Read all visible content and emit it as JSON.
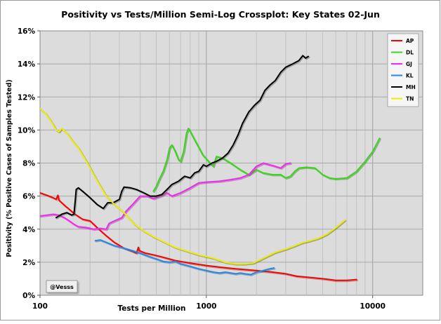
{
  "chart_data": {
    "type": "line",
    "title": "Positivity vs Tests/Million Semi-Log Crossplot: Key States  02-Jun",
    "xlabel": "Tests per Million",
    "ylabel": "Positivity (% Positive Cases of Samples Tested)",
    "x_scale": "log",
    "xlim": [
      100,
      20000
    ],
    "ylim": [
      0,
      16
    ],
    "x_tick_labels": [
      "100",
      "1000",
      "10000"
    ],
    "x_tick_values": [
      100,
      1000,
      10000
    ],
    "y_tick_labels": [
      "0%",
      "2%",
      "4%",
      "6%",
      "8%",
      "10%",
      "12%",
      "14%",
      "16%"
    ],
    "y_tick_values": [
      0,
      2,
      4,
      6,
      8,
      10,
      12,
      14,
      16
    ],
    "grid": true,
    "legend_position": "top-right",
    "watermark": "@Vesss",
    "colors": {
      "background": "#dcdcdc",
      "AP": "#ff0000",
      "DL": "#33dd11",
      "GJ": "#ff22ff",
      "KL": "#2288ee",
      "MH": "#000000",
      "TN": "#eeee00"
    },
    "series": [
      {
        "name": "AP",
        "color": "#ff0000",
        "points": [
          [
            100,
            6.2
          ],
          [
            110,
            6.05
          ],
          [
            120,
            5.9
          ],
          [
            125,
            5.8
          ],
          [
            128,
            6.05
          ],
          [
            130,
            5.75
          ],
          [
            140,
            5.45
          ],
          [
            150,
            5.2
          ],
          [
            160,
            4.95
          ],
          [
            180,
            4.6
          ],
          [
            200,
            4.5
          ],
          [
            220,
            4.1
          ],
          [
            250,
            3.6
          ],
          [
            280,
            3.2
          ],
          [
            320,
            2.85
          ],
          [
            360,
            2.65
          ],
          [
            380,
            2.55
          ],
          [
            390,
            2.9
          ],
          [
            395,
            2.7
          ],
          [
            430,
            2.55
          ],
          [
            480,
            2.45
          ],
          [
            550,
            2.3
          ],
          [
            650,
            2.1
          ],
          [
            800,
            1.95
          ],
          [
            1000,
            1.8
          ],
          [
            1200,
            1.7
          ],
          [
            1500,
            1.6
          ],
          [
            2000,
            1.5
          ],
          [
            2500,
            1.4
          ],
          [
            3000,
            1.3
          ],
          [
            3500,
            1.15
          ],
          [
            4000,
            1.1
          ],
          [
            5000,
            1.0
          ],
          [
            6000,
            0.9
          ],
          [
            7000,
            0.9
          ],
          [
            8000,
            0.95
          ]
        ]
      },
      {
        "name": "DL",
        "color": "#33dd11",
        "points": [
          [
            480,
            6.3
          ],
          [
            500,
            6.6
          ],
          [
            520,
            7.0
          ],
          [
            550,
            7.5
          ],
          [
            580,
            8.2
          ],
          [
            600,
            8.9
          ],
          [
            620,
            9.1
          ],
          [
            650,
            8.7
          ],
          [
            680,
            8.2
          ],
          [
            700,
            8.1
          ],
          [
            730,
            8.7
          ],
          [
            760,
            9.8
          ],
          [
            780,
            10.1
          ],
          [
            800,
            9.9
          ],
          [
            850,
            9.4
          ],
          [
            950,
            8.5
          ],
          [
            1050,
            8.0
          ],
          [
            1100,
            7.8
          ],
          [
            1150,
            8.4
          ],
          [
            1250,
            8.3
          ],
          [
            1400,
            8.0
          ],
          [
            1600,
            7.6
          ],
          [
            1800,
            7.3
          ],
          [
            2000,
            7.6
          ],
          [
            2200,
            7.4
          ],
          [
            2500,
            7.3
          ],
          [
            2800,
            7.3
          ],
          [
            3000,
            7.1
          ],
          [
            3200,
            7.2
          ],
          [
            3400,
            7.5
          ],
          [
            3600,
            7.7
          ],
          [
            4000,
            7.75
          ],
          [
            4500,
            7.7
          ],
          [
            5000,
            7.3
          ],
          [
            5500,
            7.1
          ],
          [
            6000,
            7.05
          ],
          [
            7000,
            7.1
          ],
          [
            8000,
            7.5
          ],
          [
            9000,
            8.1
          ],
          [
            10000,
            8.7
          ],
          [
            11000,
            9.5
          ]
        ]
      },
      {
        "name": "GJ",
        "color": "#ff22ff",
        "points": [
          [
            100,
            4.8
          ],
          [
            110,
            4.85
          ],
          [
            120,
            4.9
          ],
          [
            130,
            4.85
          ],
          [
            140,
            4.7
          ],
          [
            150,
            4.5
          ],
          [
            160,
            4.3
          ],
          [
            170,
            4.15
          ],
          [
            190,
            4.1
          ],
          [
            210,
            4.0
          ],
          [
            230,
            4.05
          ],
          [
            250,
            4.0
          ],
          [
            260,
            4.35
          ],
          [
            280,
            4.5
          ],
          [
            310,
            4.7
          ],
          [
            330,
            5.1
          ],
          [
            360,
            5.5
          ],
          [
            400,
            6.0
          ],
          [
            440,
            6.0
          ],
          [
            480,
            5.85
          ],
          [
            530,
            6.0
          ],
          [
            580,
            6.2
          ],
          [
            620,
            6.0
          ],
          [
            700,
            6.2
          ],
          [
            800,
            6.5
          ],
          [
            900,
            6.8
          ],
          [
            1000,
            6.85
          ],
          [
            1200,
            6.9
          ],
          [
            1400,
            7.0
          ],
          [
            1600,
            7.1
          ],
          [
            1800,
            7.3
          ],
          [
            2000,
            7.8
          ],
          [
            2200,
            8.0
          ],
          [
            2500,
            7.85
          ],
          [
            2800,
            7.7
          ],
          [
            3000,
            7.95
          ],
          [
            3200,
            8.0
          ]
        ]
      },
      {
        "name": "KL",
        "color": "#2288ee",
        "points": [
          [
            215,
            3.3
          ],
          [
            230,
            3.35
          ],
          [
            250,
            3.2
          ],
          [
            280,
            3.0
          ],
          [
            320,
            2.85
          ],
          [
            360,
            2.7
          ],
          [
            400,
            2.55
          ],
          [
            450,
            2.35
          ],
          [
            500,
            2.2
          ],
          [
            550,
            2.05
          ],
          [
            600,
            2.0
          ],
          [
            650,
            2.05
          ],
          [
            700,
            1.9
          ],
          [
            800,
            1.75
          ],
          [
            900,
            1.6
          ],
          [
            1000,
            1.5
          ],
          [
            1100,
            1.4
          ],
          [
            1200,
            1.35
          ],
          [
            1300,
            1.4
          ],
          [
            1400,
            1.35
          ],
          [
            1500,
            1.3
          ],
          [
            1600,
            1.35
          ],
          [
            1700,
            1.3
          ],
          [
            1850,
            1.25
          ],
          [
            2000,
            1.4
          ],
          [
            2200,
            1.5
          ],
          [
            2400,
            1.6
          ],
          [
            2550,
            1.65
          ]
        ]
      },
      {
        "name": "MH",
        "color": "#000000",
        "points": [
          [
            125,
            4.7
          ],
          [
            135,
            4.9
          ],
          [
            145,
            5.0
          ],
          [
            155,
            4.85
          ],
          [
            160,
            4.9
          ],
          [
            163,
            5.8
          ],
          [
            165,
            6.4
          ],
          [
            170,
            6.5
          ],
          [
            180,
            6.3
          ],
          [
            200,
            5.9
          ],
          [
            220,
            5.5
          ],
          [
            240,
            5.25
          ],
          [
            255,
            5.6
          ],
          [
            275,
            5.6
          ],
          [
            300,
            5.8
          ],
          [
            310,
            6.3
          ],
          [
            320,
            6.55
          ],
          [
            350,
            6.5
          ],
          [
            380,
            6.4
          ],
          [
            420,
            6.2
          ],
          [
            460,
            6.0
          ],
          [
            500,
            6.0
          ],
          [
            540,
            6.1
          ],
          [
            580,
            6.4
          ],
          [
            620,
            6.7
          ],
          [
            680,
            6.9
          ],
          [
            740,
            7.2
          ],
          [
            800,
            7.1
          ],
          [
            850,
            7.4
          ],
          [
            900,
            7.5
          ],
          [
            960,
            7.9
          ],
          [
            1000,
            7.8
          ],
          [
            1080,
            8.0
          ],
          [
            1150,
            8.1
          ],
          [
            1250,
            8.3
          ],
          [
            1350,
            8.6
          ],
          [
            1450,
            9.1
          ],
          [
            1550,
            9.7
          ],
          [
            1650,
            10.4
          ],
          [
            1800,
            11.1
          ],
          [
            1950,
            11.5
          ],
          [
            2100,
            11.8
          ],
          [
            2250,
            12.4
          ],
          [
            2400,
            12.7
          ],
          [
            2600,
            13.0
          ],
          [
            2800,
            13.5
          ],
          [
            3000,
            13.8
          ],
          [
            3300,
            14.0
          ],
          [
            3600,
            14.2
          ],
          [
            3800,
            14.5
          ],
          [
            3950,
            14.35
          ],
          [
            4100,
            14.45
          ]
        ]
      },
      {
        "name": "TN",
        "color": "#eeee00",
        "points": [
          [
            100,
            11.3
          ],
          [
            108,
            11.0
          ],
          [
            115,
            10.6
          ],
          [
            120,
            10.3
          ],
          [
            125,
            10.0
          ],
          [
            130,
            9.9
          ],
          [
            135,
            10.1
          ],
          [
            145,
            9.8
          ],
          [
            155,
            9.4
          ],
          [
            170,
            8.9
          ],
          [
            190,
            8.1
          ],
          [
            210,
            7.3
          ],
          [
            230,
            6.6
          ],
          [
            250,
            6.0
          ],
          [
            280,
            5.5
          ],
          [
            320,
            5.0
          ],
          [
            370,
            4.3
          ],
          [
            420,
            3.9
          ],
          [
            480,
            3.55
          ],
          [
            550,
            3.25
          ],
          [
            650,
            2.9
          ],
          [
            750,
            2.7
          ],
          [
            900,
            2.45
          ],
          [
            1100,
            2.25
          ],
          [
            1300,
            2.0
          ],
          [
            1500,
            1.9
          ],
          [
            1700,
            1.9
          ],
          [
            1900,
            1.95
          ],
          [
            2100,
            2.15
          ],
          [
            2300,
            2.35
          ],
          [
            2600,
            2.6
          ],
          [
            3000,
            2.8
          ],
          [
            3400,
            3.0
          ],
          [
            3800,
            3.2
          ],
          [
            4200,
            3.3
          ],
          [
            4700,
            3.45
          ],
          [
            5300,
            3.7
          ],
          [
            6000,
            4.1
          ],
          [
            6800,
            4.55
          ]
        ]
      }
    ]
  }
}
